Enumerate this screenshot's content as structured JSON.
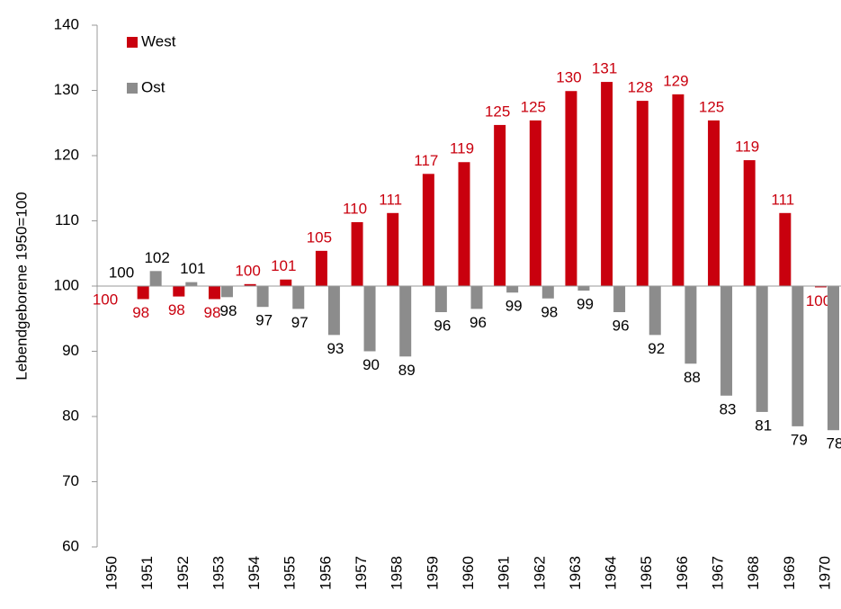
{
  "chart_data": {
    "type": "bar",
    "y_label": "Lebendgeborene  1950=100",
    "categories": [
      "1950",
      "1951",
      "1952",
      "1953",
      "1954",
      "1955",
      "1956",
      "1957",
      "1958",
      "1959",
      "1960",
      "1961",
      "1962",
      "1963",
      "1964",
      "1965",
      "1966",
      "1967",
      "1968",
      "1969",
      "1970"
    ],
    "series": [
      {
        "name": "West",
        "color": "#c9000e",
        "values": [
          100,
          98.0,
          98.4,
          98.0,
          100.3,
          101.0,
          105.4,
          109.8,
          111.2,
          117.2,
          119.0,
          124.7,
          125.4,
          129.9,
          131.3,
          128.4,
          129.4,
          125.4,
          119.3,
          111.2,
          99.8
        ],
        "value_labels": [
          "100",
          "98",
          "98",
          "98",
          "100",
          "101",
          "105",
          "110",
          "111",
          "117",
          "119",
          "125",
          "125",
          "130",
          "131",
          "128",
          "129",
          "125",
          "119",
          "111",
          "100"
        ]
      },
      {
        "name": "Ost",
        "color": "#8c8c8c",
        "values": [
          100,
          102.3,
          100.6,
          98.3,
          96.8,
          96.5,
          92.5,
          90.0,
          89.2,
          96.0,
          96.5,
          99.0,
          98.1,
          99.3,
          96.0,
          92.5,
          88.1,
          83.2,
          80.7,
          78.5,
          77.9
        ],
        "value_labels": [
          "100",
          "102",
          "101",
          "98",
          "97",
          "97",
          "93",
          "90",
          "89",
          "96",
          "96",
          "99",
          "98",
          "99",
          "96",
          "92",
          "88",
          "83",
          "81",
          "79",
          "78"
        ]
      }
    ],
    "bar_base": 100,
    "ylim": [
      60,
      140
    ],
    "yticks": [
      60,
      70,
      80,
      90,
      100,
      110,
      120,
      130,
      140
    ],
    "legend": "top-left"
  }
}
